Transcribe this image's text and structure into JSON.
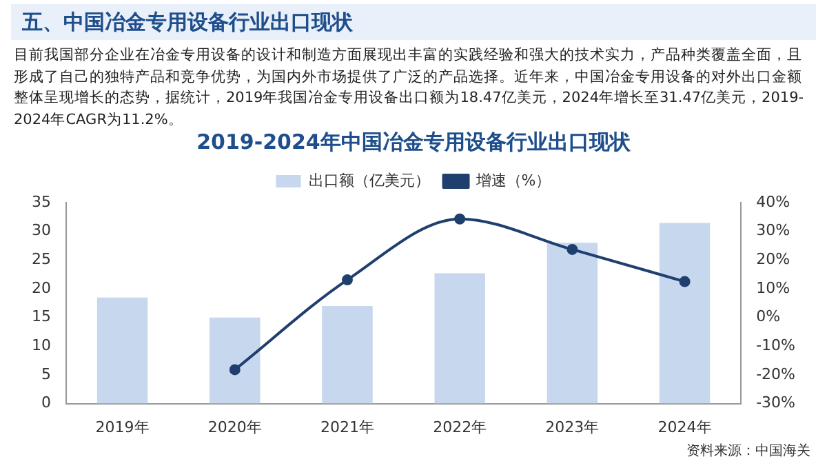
{
  "chart_data": {
    "type": "bar",
    "title": "2019-2024年中国冶金专用设备行业出口现状",
    "annotations": [
      "五、中国冶金专用设备行业出口现状",
      "目前我国部分企业在冶金专用设备的设计和制造方面展现出丰富的实践经验和强大的技术实力，产品种类覆盖全面，且形成了自己的独特产品和竞争优势，为国内外市场提供了广泛的产品选择。近年来，中国冶金专用设备的对外出口金额整体呈现增长的态势，据统计，2019年我国冶金专用设备出口额为18.47亿美元，2024年增长至31.47亿美元，2019-2024年CAGR为11.2%。",
      "资料来源：中国海关"
    ],
    "categories": [
      "2019年",
      "2020年",
      "2021年",
      "2022年",
      "2023年",
      "2024年"
    ],
    "series": [
      {
        "name": "出口额（亿美元）",
        "color": "#c6d7ee",
        "values": [
          18.47,
          15.0,
          17.0,
          22.7,
          28.0,
          31.47
        ]
      },
      {
        "name": "增速（%）",
        "type": "line",
        "axis": "y2",
        "color": "#1f3f6e",
        "marker": "circle",
        "values": [
          null,
          -18.2,
          13.1,
          34.3,
          23.7,
          12.5
        ]
      }
    ],
    "ylim": [
      0,
      35
    ],
    "yticks": [
      0,
      5,
      10,
      15,
      20,
      25,
      30,
      35
    ],
    "y2lim": [
      -30,
      40
    ],
    "y2ticks": [
      {
        "value": -30,
        "label": "-30%"
      },
      {
        "value": -20,
        "label": "-20%"
      },
      {
        "value": -10,
        "label": "-10%"
      },
      {
        "value": 0,
        "label": "0%"
      },
      {
        "value": 10,
        "label": "10%"
      },
      {
        "value": 20,
        "label": "20%"
      },
      {
        "value": 30,
        "label": "30%"
      },
      {
        "value": 40,
        "label": "40%"
      }
    ],
    "grid": false,
    "legend": "top"
  }
}
